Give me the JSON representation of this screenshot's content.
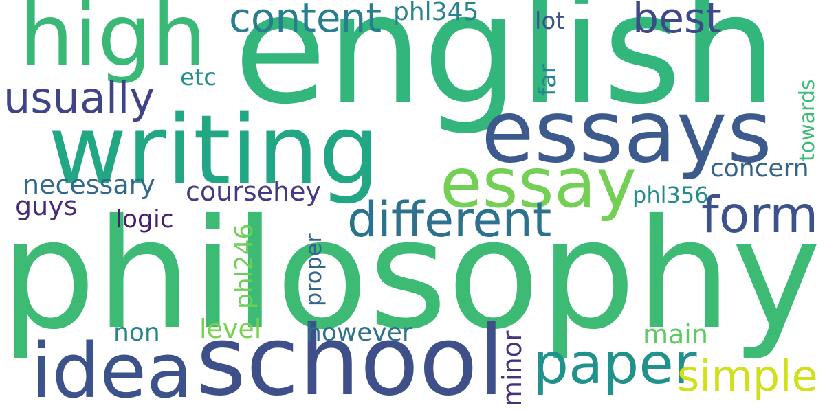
{
  "words": [
    {
      "text": "philosophy",
      "color": "#3dbb74"
    },
    {
      "text": "english",
      "color": "#33b67b"
    },
    {
      "text": "school",
      "color": "#3e4f8a"
    },
    {
      "text": "writing",
      "color": "#22a784"
    },
    {
      "text": "essays",
      "color": "#3d5a8d"
    },
    {
      "text": "high",
      "color": "#3ab875"
    },
    {
      "text": "idea",
      "color": "#3b528b"
    },
    {
      "text": "essay",
      "color": "#74d055"
    },
    {
      "text": "paper",
      "color": "#21918c"
    },
    {
      "text": "different",
      "color": "#2c728e"
    },
    {
      "text": "form",
      "color": "#3b528b"
    },
    {
      "text": "simple",
      "color": "#d0e11c"
    },
    {
      "text": "content",
      "color": "#287d8e"
    },
    {
      "text": "usually",
      "color": "#404487"
    },
    {
      "text": "best",
      "color": "#3e4989"
    },
    {
      "text": "necessary",
      "color": "#31688e"
    },
    {
      "text": "coursehey",
      "color": "#443a83"
    },
    {
      "text": "however",
      "color": "#2c718e"
    },
    {
      "text": "concern",
      "color": "#33638d"
    },
    {
      "text": "phl345",
      "color": "#26828e"
    },
    {
      "text": "phl246",
      "color": "#6ece58"
    },
    {
      "text": "level",
      "color": "#7ad151"
    },
    {
      "text": "main",
      "color": "#5ec962"
    },
    {
      "text": "logic",
      "color": "#481f70"
    },
    {
      "text": "guys",
      "color": "#472c7a"
    },
    {
      "text": "non",
      "color": "#26828e"
    },
    {
      "text": "minor",
      "color": "#46327e"
    },
    {
      "text": "proper",
      "color": "#32658e"
    },
    {
      "text": "phl356",
      "color": "#238a8d"
    },
    {
      "text": "etc",
      "color": "#21918c"
    },
    {
      "text": "far",
      "color": "#25848e"
    },
    {
      "text": "lot",
      "color": "#3b528b"
    },
    {
      "text": "towards",
      "color": "#3cbb75"
    }
  ]
}
